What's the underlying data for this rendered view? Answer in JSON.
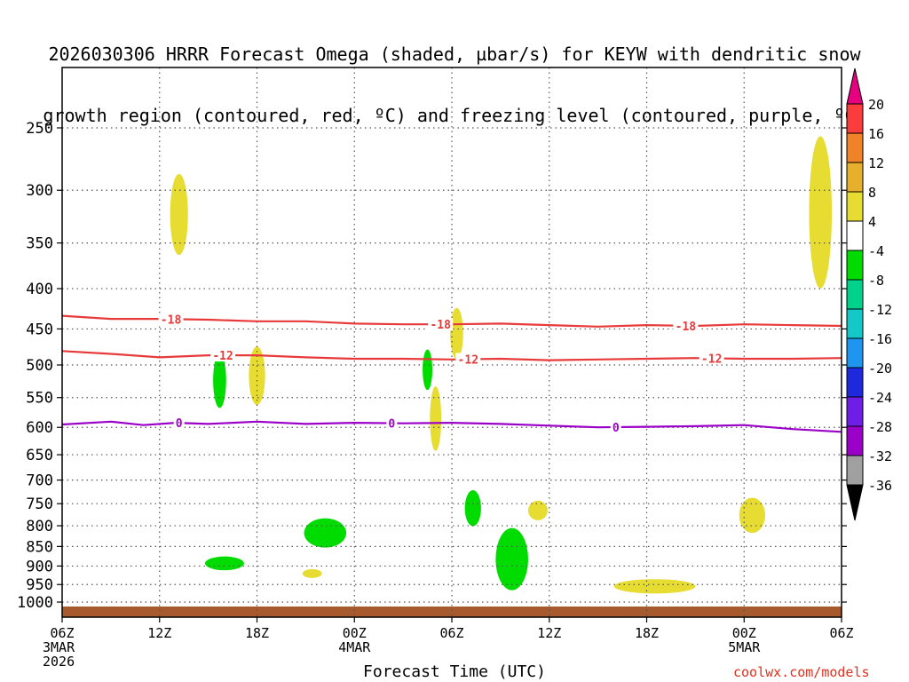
{
  "title_lines": [
    "2026030306 HRRR Forecast Omega (shaded, µbar/s) for KEYW with dendritic snow",
    "growth region (contoured, red, ºC) and freezing level (contoured, purple, ºC)"
  ],
  "credit": "coolwx.com/models",
  "chart_data": {
    "type": "time-height contour",
    "xlabel": "Forecast Time (UTC)",
    "x_range_hours": [
      0,
      48
    ],
    "x_ticks": [
      {
        "hour": 0,
        "lines": [
          "06Z",
          "3MAR",
          "2026"
        ]
      },
      {
        "hour": 6,
        "lines": [
          "12Z"
        ]
      },
      {
        "hour": 12,
        "lines": [
          "18Z"
        ]
      },
      {
        "hour": 18,
        "lines": [
          "00Z",
          "4MAR"
        ]
      },
      {
        "hour": 24,
        "lines": [
          "06Z"
        ]
      },
      {
        "hour": 30,
        "lines": [
          "12Z"
        ]
      },
      {
        "hour": 36,
        "lines": [
          "18Z"
        ]
      },
      {
        "hour": 42,
        "lines": [
          "00Z",
          "5MAR"
        ]
      },
      {
        "hour": 48,
        "lines": [
          "06Z"
        ]
      }
    ],
    "y_ticks_hpa": [
      250,
      300,
      350,
      400,
      450,
      500,
      550,
      600,
      650,
      700,
      750,
      800,
      850,
      900,
      950,
      1000
    ],
    "y_range_hpa": [
      200,
      1030
    ],
    "grid": true,
    "colorbar": {
      "labels": [
        "20",
        "16",
        "12",
        "8",
        "4",
        "-4",
        "-8",
        "-12",
        "-16",
        "-20",
        "-24",
        "-28",
        "-32",
        "-36"
      ],
      "levels": [
        -36,
        -32,
        -28,
        -24,
        -20,
        -16,
        -12,
        -8,
        -4,
        4,
        8,
        12,
        16,
        20
      ],
      "colors": [
        "#000000",
        "#a0a0a0",
        "#9b00c8",
        "#6e1ee6",
        "#1e28dc",
        "#1e96f0",
        "#14c8c8",
        "#00d28c",
        "#00dc00",
        "#ffffff",
        "#e6dc32",
        "#e6af2d",
        "#f08228",
        "#fa3c3c",
        "#e6007f"
      ]
    },
    "contours": [
      {
        "label": "-18",
        "color": "#e83a3a",
        "points": [
          [
            0,
            433
          ],
          [
            3,
            437
          ],
          [
            6,
            437
          ],
          [
            9,
            438
          ],
          [
            12,
            440
          ],
          [
            15,
            440
          ],
          [
            18,
            443
          ],
          [
            21,
            444
          ],
          [
            24,
            444
          ],
          [
            27,
            443
          ],
          [
            30,
            445
          ],
          [
            33,
            447
          ],
          [
            36,
            445
          ],
          [
            39,
            446
          ],
          [
            42,
            444
          ],
          [
            45,
            445
          ],
          [
            48,
            446
          ]
        ],
        "label_hours": [
          6.7,
          23.3,
          38.4
        ]
      },
      {
        "label": "-12",
        "color": "#e83a3a",
        "points": [
          [
            0,
            480
          ],
          [
            3,
            484
          ],
          [
            6,
            489
          ],
          [
            9,
            486
          ],
          [
            12,
            486
          ],
          [
            15,
            489
          ],
          [
            18,
            491
          ],
          [
            21,
            491
          ],
          [
            24,
            492
          ],
          [
            27,
            491
          ],
          [
            30,
            493
          ],
          [
            33,
            492
          ],
          [
            36,
            491
          ],
          [
            39,
            490
          ],
          [
            42,
            491
          ],
          [
            45,
            491
          ],
          [
            48,
            490
          ]
        ],
        "label_hours": [
          9.9,
          25.0,
          40.0
        ]
      },
      {
        "label": "0",
        "color": "#9b00c8",
        "points": [
          [
            0,
            595
          ],
          [
            3,
            590
          ],
          [
            5,
            596
          ],
          [
            7,
            592
          ],
          [
            9,
            594
          ],
          [
            12,
            590
          ],
          [
            15,
            594
          ],
          [
            18,
            592
          ],
          [
            21,
            593
          ],
          [
            24,
            592
          ],
          [
            27,
            594
          ],
          [
            30,
            597
          ],
          [
            33,
            600
          ],
          [
            36,
            599
          ],
          [
            39,
            598
          ],
          [
            42,
            596
          ],
          [
            45,
            603
          ],
          [
            48,
            608
          ]
        ],
        "label_hours": [
          7.2,
          20.3,
          34.1
        ]
      }
    ],
    "shaded_cells": [
      {
        "t": 7.2,
        "p": 322,
        "dt": 0.55,
        "dp": 38,
        "value": 5
      },
      {
        "t": 9.7,
        "p": 523,
        "dt": 0.4,
        "dp": 42,
        "value": -5
      },
      {
        "t": 12.0,
        "p": 516,
        "dt": 0.5,
        "dp": 44,
        "value": 5
      },
      {
        "t": 10.0,
        "p": 893,
        "dt": 1.2,
        "dp": 18,
        "value": -5
      },
      {
        "t": 15.4,
        "p": 920,
        "dt": 0.6,
        "dp": 12,
        "value": 5
      },
      {
        "t": 16.2,
        "p": 817,
        "dt": 1.3,
        "dp": 35,
        "value": -5
      },
      {
        "t": 22.5,
        "p": 507,
        "dt": 0.3,
        "dp": 30,
        "value": -5
      },
      {
        "t": 23.0,
        "p": 585,
        "dt": 0.35,
        "dp": 55,
        "value": 5
      },
      {
        "t": 24.3,
        "p": 456,
        "dt": 0.4,
        "dp": 34,
        "value": 5
      },
      {
        "t": 25.3,
        "p": 760,
        "dt": 0.5,
        "dp": 40,
        "value": -5
      },
      {
        "t": 27.7,
        "p": 882,
        "dt": 1.0,
        "dp": 80,
        "value": -6
      },
      {
        "t": 29.3,
        "p": 765,
        "dt": 0.6,
        "dp": 22,
        "value": 5
      },
      {
        "t": 36.5,
        "p": 955,
        "dt": 2.5,
        "dp": 20,
        "value": 5
      },
      {
        "t": 42.5,
        "p": 776,
        "dt": 0.8,
        "dp": 40,
        "value": 5
      },
      {
        "t": 46.7,
        "p": 320,
        "dt": 0.7,
        "dp": 70,
        "value": 6
      }
    ]
  }
}
